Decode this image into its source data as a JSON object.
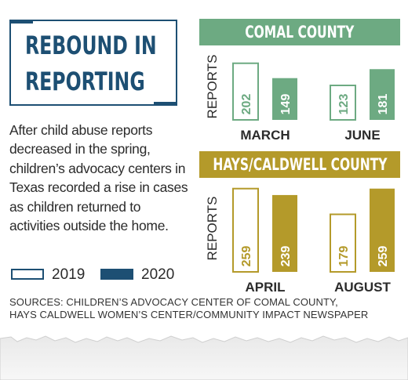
{
  "title": {
    "line1": "REBOUND IN",
    "line2": "REPORTING"
  },
  "intro": "After child abuse reports decreased in the spring, children’s advocacy centers in Texas recorded a rise in cases as children returned to activities outside the home.",
  "legend": [
    {
      "label": "2019",
      "style": "outline"
    },
    {
      "label": "2020",
      "style": "filled",
      "color": "#1d4f73"
    }
  ],
  "colors": {
    "navy": "#1d4f73",
    "comal_green": "#6daa82",
    "hays_gold": "#b49a2a",
    "outline_fill": "#ffffff"
  },
  "sources": {
    "line1": "SOURCES: CHILDREN’S ADVOCACY CENTER OF COMAL COUNTY,",
    "line2": "HAYS CALDWELL WOMEN’S CENTER/COMMUNITY IMPACT NEWSPAPER"
  },
  "chart_data": [
    {
      "type": "bar",
      "title": "COMAL COUNTY",
      "ylabel": "REPORTS",
      "categories": [
        "MARCH",
        "JUNE"
      ],
      "series": [
        {
          "name": "2019",
          "values": [
            202,
            123
          ]
        },
        {
          "name": "2020",
          "values": [
            149,
            181
          ]
        }
      ],
      "data_labels": true,
      "color": "#6daa82",
      "ylim": [
        0,
        260
      ]
    },
    {
      "type": "bar",
      "title": "HAYS/CALDWELL COUNTY",
      "ylabel": "REPORTS",
      "categories": [
        "APRIL",
        "AUGUST"
      ],
      "series": [
        {
          "name": "2019",
          "values": [
            259,
            179
          ]
        },
        {
          "name": "2020",
          "values": [
            239,
            259
          ]
        }
      ],
      "data_labels": true,
      "color": "#b49a2a",
      "ylim": [
        0,
        290
      ]
    }
  ]
}
